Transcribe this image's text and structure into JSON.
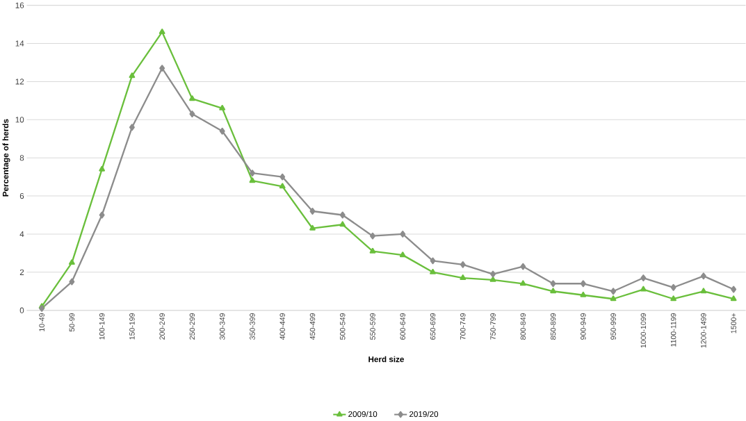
{
  "chart_data": {
    "type": "line",
    "xlabel": "Herd size",
    "ylabel": "Percentage of herds",
    "categories": [
      "10-49",
      "50-99",
      "100-149",
      "150-199",
      "200-249",
      "250-299",
      "300-349",
      "350-399",
      "400-449",
      "450-499",
      "500-549",
      "550-599",
      "600-649",
      "650-699",
      "700-749",
      "750-799",
      "800-849",
      "850-899",
      "900-949",
      "950-999",
      "1000-1099",
      "1100-1199",
      "1200-1499",
      "1500+"
    ],
    "series": [
      {
        "name": "2009/10",
        "color": "#6abf3c",
        "marker": "triangle",
        "values": [
          0.2,
          2.5,
          7.4,
          12.3,
          14.6,
          11.1,
          10.6,
          6.8,
          6.5,
          4.3,
          4.5,
          3.1,
          2.9,
          2.0,
          1.7,
          1.6,
          1.4,
          1.0,
          0.8,
          0.6,
          1.1,
          0.6,
          1.0,
          0.6
        ]
      },
      {
        "name": "2019/20",
        "color": "#8c8c8c",
        "marker": "diamond",
        "values": [
          0.1,
          1.5,
          5.0,
          9.6,
          12.7,
          10.3,
          9.4,
          7.2,
          7.0,
          5.2,
          5.0,
          3.9,
          4.0,
          2.6,
          2.4,
          1.9,
          2.3,
          1.4,
          1.4,
          1.0,
          1.7,
          1.2,
          1.8,
          1.1
        ]
      }
    ],
    "ylim": [
      0,
      16
    ],
    "yticks": [
      0,
      2,
      4,
      6,
      8,
      10,
      12,
      14,
      16
    ],
    "grid": "y",
    "legend": "bottom",
    "line_style": "solid"
  }
}
